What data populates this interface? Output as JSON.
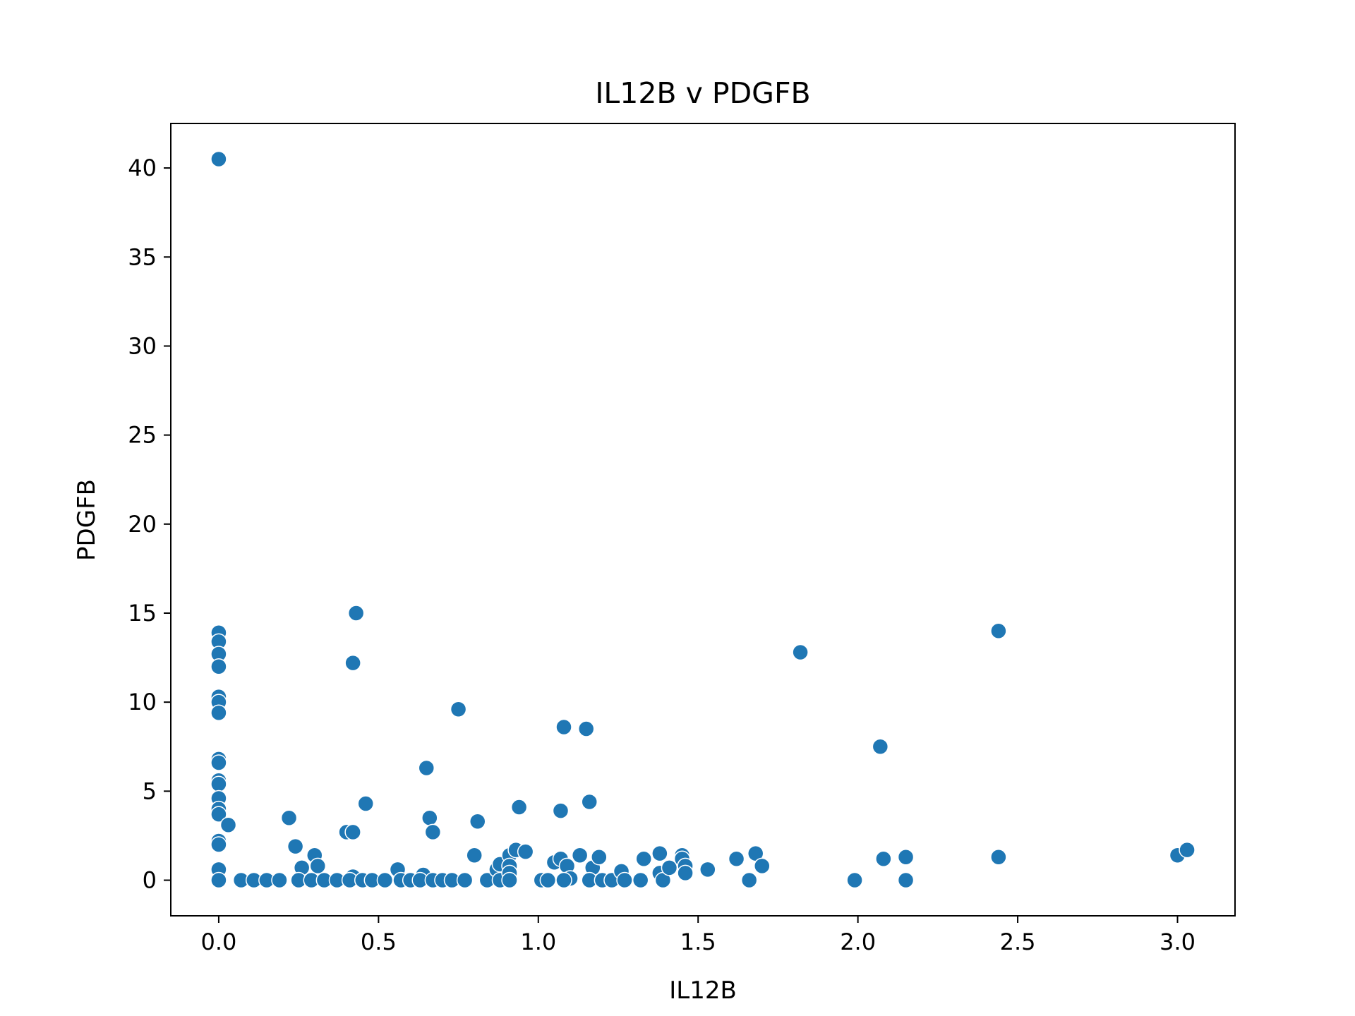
{
  "chart_data": {
    "type": "scatter",
    "title": "IL12B v PDGFB",
    "xlabel": "IL12B",
    "ylabel": "PDGFB",
    "xlim": [
      -0.15,
      3.18
    ],
    "ylim": [
      -2.0,
      42.5
    ],
    "xticks": [
      0.0,
      0.5,
      1.0,
      1.5,
      2.0,
      2.5,
      3.0
    ],
    "xtick_labels": [
      "0.0",
      "0.5",
      "1.0",
      "1.5",
      "2.0",
      "2.5",
      "3.0"
    ],
    "yticks": [
      0,
      5,
      10,
      15,
      20,
      25,
      30,
      35,
      40
    ],
    "ytick_labels": [
      "0",
      "5",
      "10",
      "15",
      "20",
      "25",
      "30",
      "35",
      "40"
    ],
    "grid": false,
    "marker_color": "#1f77b4",
    "marker_edge": "#ffffff",
    "series": [
      {
        "points": [
          [
            0.0,
            40.5
          ],
          [
            0.0,
            13.9
          ],
          [
            0.0,
            13.4
          ],
          [
            0.0,
            12.7
          ],
          [
            0.0,
            12.0
          ],
          [
            0.0,
            10.3
          ],
          [
            0.0,
            10.0
          ],
          [
            0.0,
            9.4
          ],
          [
            0.0,
            6.8
          ],
          [
            0.0,
            6.6
          ],
          [
            0.0,
            5.6
          ],
          [
            0.0,
            5.4
          ],
          [
            0.0,
            4.6
          ],
          [
            0.0,
            4.0
          ],
          [
            0.0,
            3.7
          ],
          [
            0.0,
            2.2
          ],
          [
            0.0,
            2.0
          ],
          [
            0.0,
            0.6
          ],
          [
            0.0,
            0.0
          ],
          [
            0.03,
            3.1
          ],
          [
            0.07,
            0.0
          ],
          [
            0.11,
            0.0
          ],
          [
            0.15,
            0.0
          ],
          [
            0.19,
            0.0
          ],
          [
            0.22,
            3.5
          ],
          [
            0.24,
            1.9
          ],
          [
            0.26,
            0.7
          ],
          [
            0.3,
            1.4
          ],
          [
            0.31,
            0.8
          ],
          [
            0.25,
            0.0
          ],
          [
            0.29,
            0.0
          ],
          [
            0.33,
            0.0
          ],
          [
            0.37,
            0.0
          ],
          [
            0.4,
            2.7
          ],
          [
            0.42,
            2.7
          ],
          [
            0.43,
            15.0
          ],
          [
            0.42,
            12.2
          ],
          [
            0.46,
            4.3
          ],
          [
            0.42,
            0.2
          ],
          [
            0.41,
            0.0
          ],
          [
            0.45,
            0.0
          ],
          [
            0.48,
            0.0
          ],
          [
            0.52,
            0.0
          ],
          [
            0.56,
            0.6
          ],
          [
            0.57,
            0.0
          ],
          [
            0.6,
            0.0
          ],
          [
            0.64,
            0.3
          ],
          [
            0.63,
            0.0
          ],
          [
            0.65,
            6.3
          ],
          [
            0.66,
            3.5
          ],
          [
            0.67,
            2.7
          ],
          [
            0.67,
            0.0
          ],
          [
            0.7,
            0.0
          ],
          [
            0.73,
            0.0
          ],
          [
            0.75,
            9.6
          ],
          [
            0.77,
            0.0
          ],
          [
            0.8,
            1.4
          ],
          [
            0.81,
            3.3
          ],
          [
            0.84,
            0.0
          ],
          [
            0.87,
            0.6
          ],
          [
            0.88,
            0.9
          ],
          [
            0.88,
            0.0
          ],
          [
            0.91,
            1.4
          ],
          [
            0.91,
            0.8
          ],
          [
            0.91,
            0.4
          ],
          [
            0.93,
            1.7
          ],
          [
            0.94,
            4.1
          ],
          [
            0.96,
            1.6
          ],
          [
            0.91,
            0.0
          ],
          [
            1.01,
            0.0
          ],
          [
            1.03,
            0.0
          ],
          [
            1.05,
            1.0
          ],
          [
            1.07,
            1.2
          ],
          [
            1.07,
            3.9
          ],
          [
            1.08,
            8.6
          ],
          [
            1.09,
            0.8
          ],
          [
            1.1,
            0.1
          ],
          [
            1.13,
            1.4
          ],
          [
            1.15,
            8.5
          ],
          [
            1.16,
            4.4
          ],
          [
            1.17,
            0.7
          ],
          [
            1.19,
            1.3
          ],
          [
            1.08,
            0.0
          ],
          [
            1.16,
            0.0
          ],
          [
            1.2,
            0.0
          ],
          [
            1.23,
            0.0
          ],
          [
            1.26,
            0.5
          ],
          [
            1.27,
            0.0
          ],
          [
            1.32,
            0.0
          ],
          [
            1.33,
            1.2
          ],
          [
            1.38,
            1.5
          ],
          [
            1.38,
            0.4
          ],
          [
            1.39,
            0.0
          ],
          [
            1.41,
            0.7
          ],
          [
            1.45,
            1.4
          ],
          [
            1.45,
            1.2
          ],
          [
            1.46,
            0.8
          ],
          [
            1.46,
            0.4
          ],
          [
            1.53,
            0.6
          ],
          [
            1.62,
            1.2
          ],
          [
            1.66,
            0.0
          ],
          [
            1.68,
            1.5
          ],
          [
            1.7,
            0.8
          ],
          [
            1.82,
            12.8
          ],
          [
            1.99,
            0.0
          ],
          [
            2.07,
            7.5
          ],
          [
            2.08,
            1.2
          ],
          [
            2.15,
            1.3
          ],
          [
            2.15,
            0.0
          ],
          [
            2.44,
            14.0
          ],
          [
            2.44,
            1.3
          ],
          [
            3.0,
            1.4
          ],
          [
            3.03,
            1.7
          ]
        ]
      }
    ]
  }
}
